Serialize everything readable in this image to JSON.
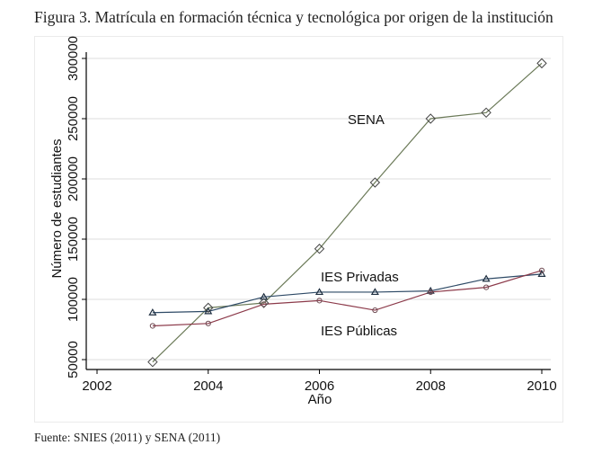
{
  "figure": {
    "caption": "Figura 3.  Matrícula en formación técnica y tecnológica por origen de la institución",
    "source": "Fuente: SNIES (2011) y SENA (2011)"
  },
  "chart_data": {
    "type": "line",
    "title": "Figura 3.  Matrícula en formación técnica y tecnológica por origen de la institución",
    "xlabel": "Año",
    "ylabel": "Número de estudiantes",
    "xlim": [
      2002,
      2010
    ],
    "ylim": [
      50000,
      300000
    ],
    "x_ticks": [
      2002,
      2004,
      2006,
      2008,
      2010
    ],
    "x_tick_labels": [
      "2002",
      "2004",
      "2006",
      "2008",
      "2010"
    ],
    "y_ticks": [
      50000,
      100000,
      150000,
      200000,
      250000,
      300000
    ],
    "y_tick_labels": [
      "50000",
      "100000",
      "150000",
      "200000",
      "250000",
      "300000"
    ],
    "grid": true,
    "legend": "none (inline labels)",
    "x": [
      2003,
      2004,
      2005,
      2006,
      2007,
      2008,
      2009,
      2010
    ],
    "series": [
      {
        "name": "SENA",
        "label": "SENA",
        "marker": "diamond",
        "color": "#6b7a58",
        "values": [
          48000,
          93000,
          97000,
          142000,
          197000,
          250000,
          255000,
          296000
        ]
      },
      {
        "name": "IES Privadas",
        "label": "IES Privadas",
        "marker": "triangle",
        "color": "#2e4a66",
        "values": [
          89000,
          90000,
          102000,
          106000,
          106000,
          107000,
          117000,
          121000
        ]
      },
      {
        "name": "IES Públicas",
        "label": "IES Públicas",
        "marker": "circle",
        "color": "#8c3a4a",
        "values": [
          78000,
          80000,
          96000,
          99000,
          91000,
          106000,
          110000,
          124000
        ]
      }
    ]
  }
}
